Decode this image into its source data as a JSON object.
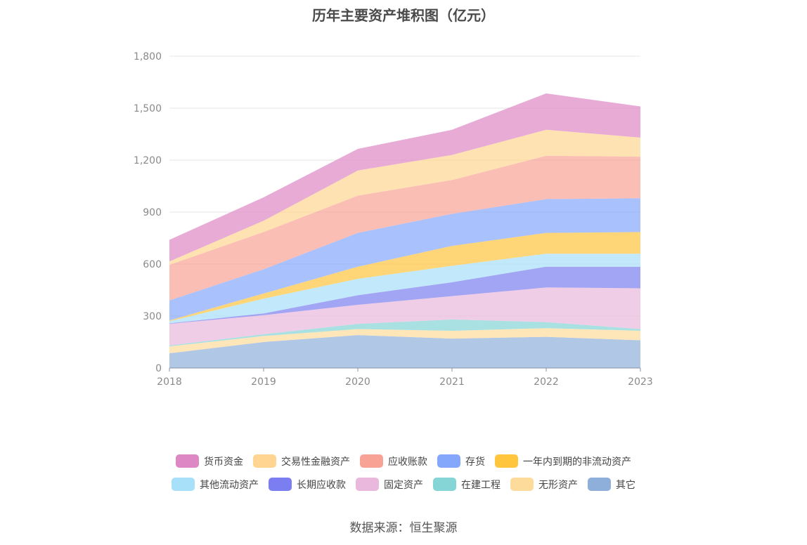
{
  "chart_data": {
    "type": "area",
    "stacked": true,
    "title": "历年主要资产堆积图（亿元）",
    "x": [
      "2018",
      "2019",
      "2020",
      "2021",
      "2022",
      "2023"
    ],
    "ylim": [
      0,
      1800
    ],
    "yticks": [
      "0",
      "300",
      "600",
      "900",
      "1,200",
      "1,500",
      "1,800"
    ],
    "grid": true,
    "legend_position": "bottom",
    "series": [
      {
        "name": "其它",
        "color": "#8fafdb",
        "values": [
          85,
          150,
          190,
          170,
          180,
          160
        ]
      },
      {
        "name": "无形资产",
        "color": "#fddc9b",
        "values": [
          40,
          35,
          35,
          45,
          50,
          55
        ]
      },
      {
        "name": "在建工程",
        "color": "#85d4d6",
        "values": [
          5,
          10,
          30,
          65,
          35,
          10
        ]
      },
      {
        "name": "固定资产",
        "color": "#eab8dc",
        "values": [
          125,
          110,
          110,
          135,
          200,
          235
        ]
      },
      {
        "name": "长期应收款",
        "color": "#7b7ef0",
        "values": [
          3,
          10,
          55,
          80,
          120,
          125
        ]
      },
      {
        "name": "其他流动资产",
        "color": "#a8e0fa",
        "values": [
          12,
          85,
          95,
          95,
          75,
          75
        ]
      },
      {
        "name": "一年内到期的非流动资产",
        "color": "#ffc53d",
        "values": [
          5,
          30,
          70,
          115,
          120,
          125
        ]
      },
      {
        "name": "存货",
        "color": "#84a7fb",
        "values": [
          115,
          140,
          195,
          185,
          195,
          195
        ]
      },
      {
        "name": "应收账款",
        "color": "#f8a296",
        "values": [
          205,
          215,
          215,
          195,
          250,
          240
        ]
      },
      {
        "name": "交易性金融资产",
        "color": "#ffd591",
        "values": [
          20,
          65,
          145,
          145,
          150,
          110
        ]
      },
      {
        "name": "货币资金",
        "color": "#dd88c4",
        "values": [
          125,
          135,
          125,
          145,
          210,
          180
        ]
      }
    ],
    "legend_order": [
      "货币资金",
      "交易性金融资产",
      "应收账款",
      "存货",
      "一年内到期的非流动资产",
      "其他流动资产",
      "长期应收款",
      "固定资产",
      "在建工程",
      "无形资产",
      "其它"
    ]
  },
  "source": "数据来源：恒生聚源"
}
